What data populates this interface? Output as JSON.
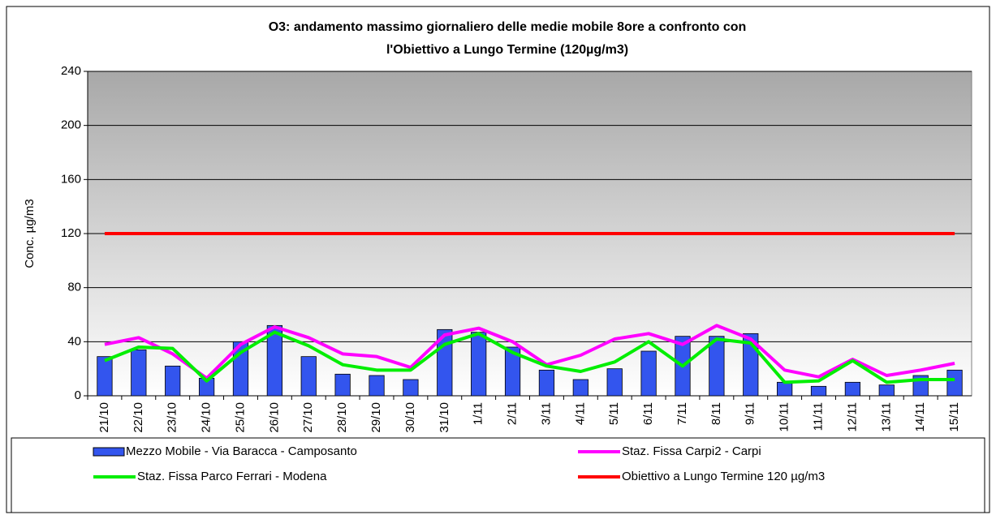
{
  "chart_data": {
    "type": "bar",
    "title": [
      "O3: andamento massimo giornaliero delle medie mobile 8ore a confronto con",
      "l'Obiettivo a Lungo Termine  (120µg/m3)"
    ],
    "y_label": "Conc. µg/m3",
    "categories": [
      "21/10",
      "22/10",
      "23/10",
      "24/10",
      "25/10",
      "26/10",
      "27/10",
      "28/10",
      "29/10",
      "30/10",
      "31/10",
      "1/11",
      "2/11",
      "3/11",
      "4/11",
      "5/11",
      "6/11",
      "7/11",
      "8/11",
      "9/11",
      "10/11",
      "11/11",
      "12/11",
      "13/11",
      "14/11",
      "15/11"
    ],
    "series": [
      {
        "name": "Mezzo Mobile - Via Baracca - Camposanto",
        "type": "bar",
        "color": "#3355ee",
        "values": [
          29,
          34,
          22,
          13,
          40,
          52,
          29,
          16,
          15,
          12,
          49,
          47,
          36,
          19,
          12,
          20,
          33,
          44,
          44,
          46,
          10,
          7,
          10,
          8,
          15,
          19
        ]
      },
      {
        "name": "Staz. Fissa Carpi2 - Carpi",
        "type": "line",
        "color": "#ff00ff",
        "values": [
          38,
          43,
          31,
          13,
          38,
          51,
          43,
          31,
          29,
          21,
          45,
          50,
          40,
          23,
          30,
          42,
          46,
          38,
          52,
          42,
          19,
          14,
          27,
          15,
          19,
          24
        ]
      },
      {
        "name": "Staz. Fissa Parco Ferrari - Modena",
        "type": "line",
        "color": "#00ee00",
        "values": [
          26,
          36,
          35,
          11,
          32,
          47,
          37,
          23,
          19,
          19,
          38,
          46,
          32,
          22,
          18,
          25,
          40,
          22,
          42,
          39,
          10,
          11,
          26,
          10,
          12,
          12
        ]
      },
      {
        "name": "Obiettivo  a Lungo Termine 120 µg/m3",
        "type": "line",
        "color": "#ff0000",
        "values": [
          120,
          120,
          120,
          120,
          120,
          120,
          120,
          120,
          120,
          120,
          120,
          120,
          120,
          120,
          120,
          120,
          120,
          120,
          120,
          120,
          120,
          120,
          120,
          120,
          120,
          120
        ]
      }
    ],
    "ylim": [
      0,
      240
    ],
    "yticks": [
      0,
      40,
      80,
      120,
      160,
      200,
      240
    ],
    "grid": true
  }
}
